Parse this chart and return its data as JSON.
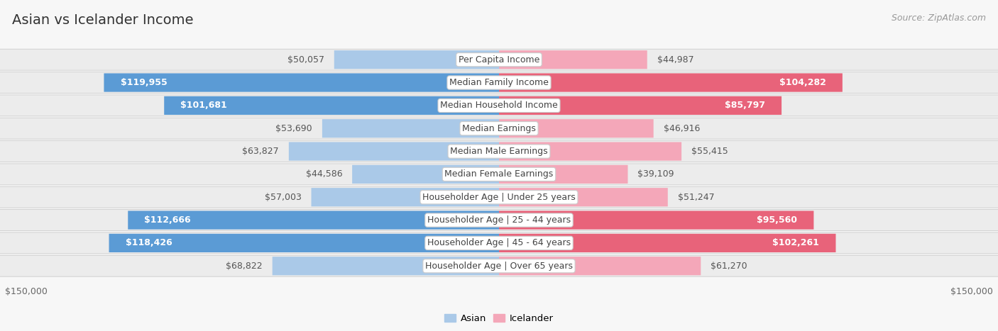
{
  "title": "Asian vs Icelander Income",
  "source": "Source: ZipAtlas.com",
  "categories": [
    "Per Capita Income",
    "Median Family Income",
    "Median Household Income",
    "Median Earnings",
    "Median Male Earnings",
    "Median Female Earnings",
    "Householder Age | Under 25 years",
    "Householder Age | 25 - 44 years",
    "Householder Age | 45 - 64 years",
    "Householder Age | Over 65 years"
  ],
  "asian_values": [
    50057,
    119955,
    101681,
    53690,
    63827,
    44586,
    57003,
    112666,
    118426,
    68822
  ],
  "icelander_values": [
    44987,
    104282,
    85797,
    46916,
    55415,
    39109,
    51247,
    95560,
    102261,
    61270
  ],
  "max_value": 150000,
  "asian_color_light": "#aac9e8",
  "asian_color_dark": "#5b9bd5",
  "icelander_color_light": "#f4a7b9",
  "icelander_color_dark": "#e8637a",
  "asian_label": "Asian",
  "icelander_label": "Icelander",
  "bg_color": "#f7f7f7",
  "row_bg": "#e8e8e8",
  "title_fontsize": 14,
  "source_fontsize": 9,
  "label_fontsize": 9,
  "value_fontsize": 9,
  "inside_threshold": 70000
}
